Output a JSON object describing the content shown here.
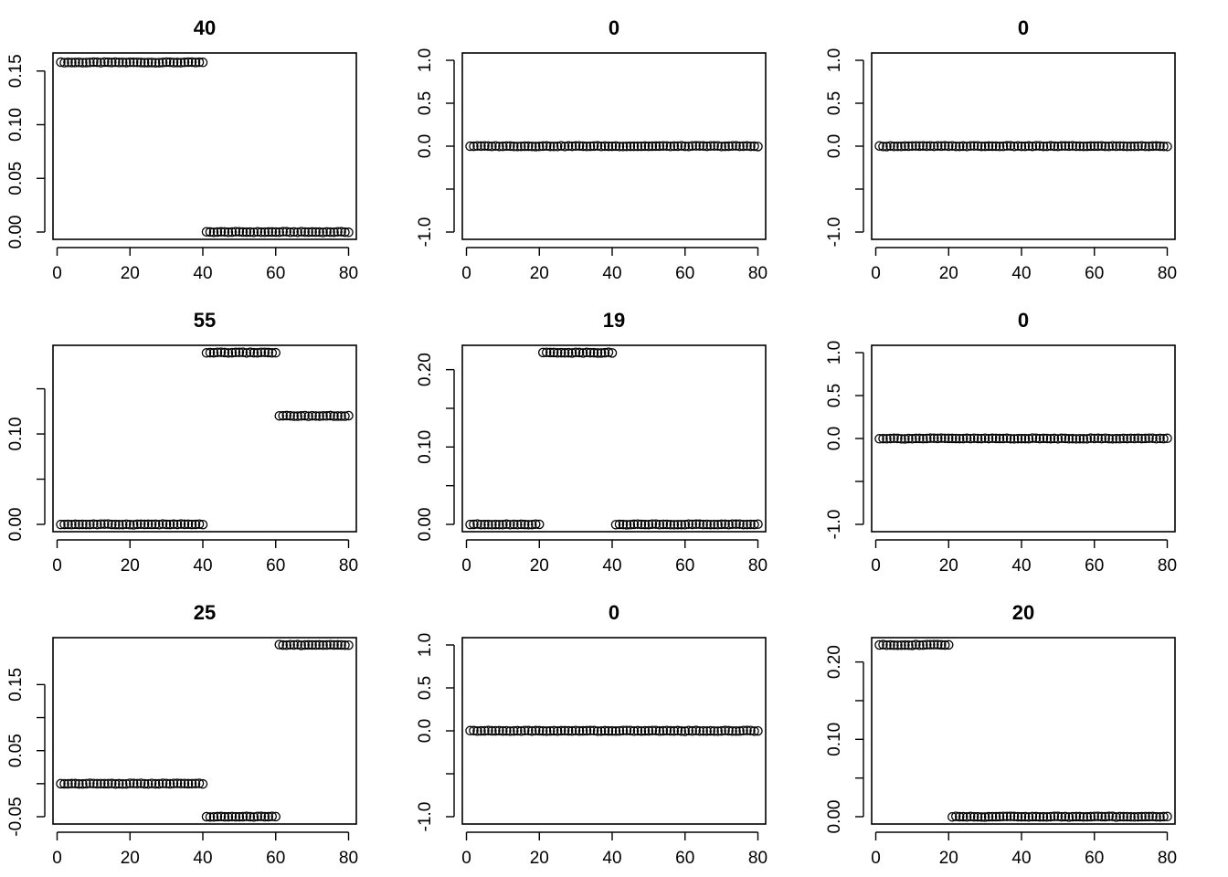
{
  "chart_data": [
    {
      "type": "scatter",
      "title": "40",
      "xlim": [
        1,
        80
      ],
      "ylim": [
        0,
        0.16
      ],
      "xticks": [
        0,
        20,
        40,
        60,
        80
      ],
      "yticks": [
        0,
        0.05,
        0.1,
        0.15
      ],
      "ytick_labels": [
        "0.00",
        "0.05",
        "0.10",
        "0.15"
      ],
      "segments": [
        {
          "x": [
            1,
            40
          ],
          "y": 0.158
        },
        {
          "x": [
            41,
            80
          ],
          "y": 0.0
        }
      ]
    },
    {
      "type": "scatter",
      "title": "0",
      "xlim": [
        1,
        80
      ],
      "ylim": [
        -1,
        1
      ],
      "xticks": [
        0,
        20,
        40,
        60,
        80
      ],
      "yticks": [
        -1,
        -0.5,
        0,
        0.5,
        1
      ],
      "ytick_labels": [
        "-1.0",
        "",
        "0.0",
        "0.5",
        "1.0"
      ],
      "segments": [
        {
          "x": [
            1,
            80
          ],
          "y": 0.0
        }
      ]
    },
    {
      "type": "scatter",
      "title": "0",
      "xlim": [
        1,
        80
      ],
      "ylim": [
        -1,
        1
      ],
      "xticks": [
        0,
        20,
        40,
        60,
        80
      ],
      "yticks": [
        -1,
        -0.5,
        0,
        0.5,
        1
      ],
      "ytick_labels": [
        "-1.0",
        "",
        "0.0",
        "0.5",
        "1.0"
      ],
      "segments": [
        {
          "x": [
            1,
            80
          ],
          "y": 0.0
        }
      ]
    },
    {
      "type": "scatter",
      "title": "55",
      "xlim": [
        1,
        80
      ],
      "ylim": [
        0,
        0.19
      ],
      "xticks": [
        0,
        20,
        40,
        60,
        80
      ],
      "yticks": [
        0,
        0.05,
        0.1,
        0.15
      ],
      "ytick_labels": [
        "0.00",
        "",
        "0.10",
        ""
      ],
      "segments": [
        {
          "x": [
            1,
            40
          ],
          "y": 0.0
        },
        {
          "x": [
            41,
            60
          ],
          "y": 0.19
        },
        {
          "x": [
            61,
            80
          ],
          "y": 0.12
        }
      ]
    },
    {
      "type": "scatter",
      "title": "19",
      "xlim": [
        1,
        80
      ],
      "ylim": [
        0,
        0.222
      ],
      "xticks": [
        0,
        20,
        40,
        60,
        80
      ],
      "yticks": [
        0,
        0.05,
        0.1,
        0.15,
        0.2
      ],
      "ytick_labels": [
        "0.00",
        "",
        "0.10",
        "",
        "0.20"
      ],
      "segments": [
        {
          "x": [
            1,
            20
          ],
          "y": 0.0
        },
        {
          "x": [
            21,
            40
          ],
          "y": 0.222
        },
        {
          "x": [
            41,
            80
          ],
          "y": 0.0
        }
      ]
    },
    {
      "type": "scatter",
      "title": "0",
      "xlim": [
        1,
        80
      ],
      "ylim": [
        -1,
        1
      ],
      "xticks": [
        0,
        20,
        40,
        60,
        80
      ],
      "yticks": [
        -1,
        -0.5,
        0,
        0.5,
        1
      ],
      "ytick_labels": [
        "-1.0",
        "",
        "0.0",
        "0.5",
        "1.0"
      ],
      "segments": [
        {
          "x": [
            1,
            80
          ],
          "y": 0.0
        }
      ]
    },
    {
      "type": "scatter",
      "title": "25",
      "xlim": [
        1,
        80
      ],
      "ylim": [
        -0.05,
        0.21
      ],
      "xticks": [
        0,
        20,
        40,
        60,
        80
      ],
      "yticks": [
        -0.05,
        0,
        0.05,
        0.1,
        0.15
      ],
      "ytick_labels": [
        "-0.05",
        "",
        "0.05",
        "",
        "0.15"
      ],
      "segments": [
        {
          "x": [
            1,
            40
          ],
          "y": 0.0
        },
        {
          "x": [
            41,
            60
          ],
          "y": -0.05
        },
        {
          "x": [
            61,
            80
          ],
          "y": 0.21
        }
      ]
    },
    {
      "type": "scatter",
      "title": "0",
      "xlim": [
        1,
        80
      ],
      "ylim": [
        -1,
        1
      ],
      "xticks": [
        0,
        20,
        40,
        60,
        80
      ],
      "yticks": [
        -1,
        -0.5,
        0,
        0.5,
        1
      ],
      "ytick_labels": [
        "-1.0",
        "",
        "0.0",
        "0.5",
        "1.0"
      ],
      "segments": [
        {
          "x": [
            1,
            80
          ],
          "y": 0.0
        }
      ]
    },
    {
      "type": "scatter",
      "title": "20",
      "xlim": [
        1,
        80
      ],
      "ylim": [
        0,
        0.222
      ],
      "xticks": [
        0,
        20,
        40,
        60,
        80
      ],
      "yticks": [
        0,
        0.05,
        0.1,
        0.15,
        0.2
      ],
      "ytick_labels": [
        "0.00",
        "",
        "0.10",
        "",
        "0.20"
      ],
      "segments": [
        {
          "x": [
            1,
            20
          ],
          "y": 0.222
        },
        {
          "x": [
            21,
            80
          ],
          "y": 0.0
        }
      ]
    }
  ]
}
